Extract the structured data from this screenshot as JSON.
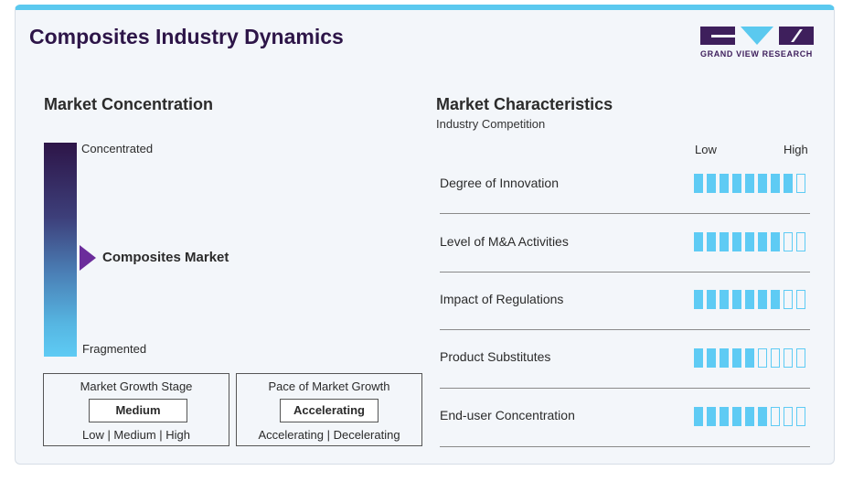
{
  "header": {
    "title": "Composites Industry Dynamics",
    "logo_text": "GRAND VIEW RESEARCH"
  },
  "concentration": {
    "title": "Market Concentration",
    "top_label": "Concentrated",
    "bottom_label": "Fragmented",
    "market_label": "Composites Market",
    "position_fraction_from_top": 0.54,
    "gradient_colors": [
      "#2d1548",
      "#5ecbf4"
    ],
    "pointer_color": "#6b2c9b"
  },
  "growth_stage": {
    "title": "Market Growth Stage",
    "value": "Medium",
    "options_text": "Low | Medium | High"
  },
  "pace": {
    "title": "Pace of Market Growth",
    "value": "Accelerating",
    "options_text": "Accelerating | Decelerating"
  },
  "characteristics": {
    "title": "Market Characteristics",
    "subtitle": "Industry Competition",
    "low_label": "Low",
    "high_label": "High",
    "scale_max": 9,
    "accent_color": "#5ecbf4",
    "rows": [
      {
        "label": "Degree of Innovation",
        "level": 8
      },
      {
        "label": "Level of M&A Activities",
        "level": 7
      },
      {
        "label": "Impact of Regulations",
        "level": 7
      },
      {
        "label": "Product Substitutes",
        "level": 5
      },
      {
        "label": "End-user Concentration",
        "level": 6
      }
    ]
  }
}
